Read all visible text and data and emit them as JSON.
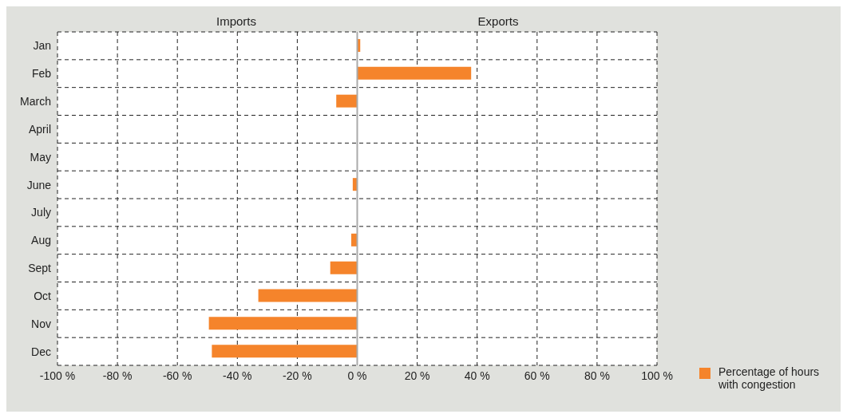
{
  "chart_data": {
    "type": "bar",
    "orientation": "horizontal",
    "categories": [
      "Jan",
      "Feb",
      "March",
      "April",
      "May",
      "June",
      "July",
      "Aug",
      "Sept",
      "Oct",
      "Nov",
      "Dec"
    ],
    "series": [
      {
        "name": "Percentage of hours with congestion",
        "color": "#f5842b",
        "values": [
          1,
          38,
          -7,
          0,
          0,
          -1.5,
          0,
          -2,
          -9,
          -33,
          -49.5,
          -48.5
        ]
      }
    ],
    "xlim": [
      -100,
      100
    ],
    "xticks": [
      {
        "value": -100,
        "label": "-100 %"
      },
      {
        "value": -80,
        "label": "-80 %"
      },
      {
        "value": -60,
        "label": "-60 %"
      },
      {
        "value": -40,
        "label": "-40 %"
      },
      {
        "value": -20,
        "label": "-20 %"
      },
      {
        "value": 0,
        "label": "0 %"
      },
      {
        "value": 20,
        "label": "20 %"
      },
      {
        "value": 40,
        "label": "40 %"
      },
      {
        "value": 60,
        "label": "60 %"
      },
      {
        "value": 80,
        "label": "80 %"
      },
      {
        "value": 100,
        "label": "100 %"
      }
    ],
    "annotations": [
      "Imports",
      "Exports"
    ],
    "grid": true,
    "legend": "bottom right"
  }
}
